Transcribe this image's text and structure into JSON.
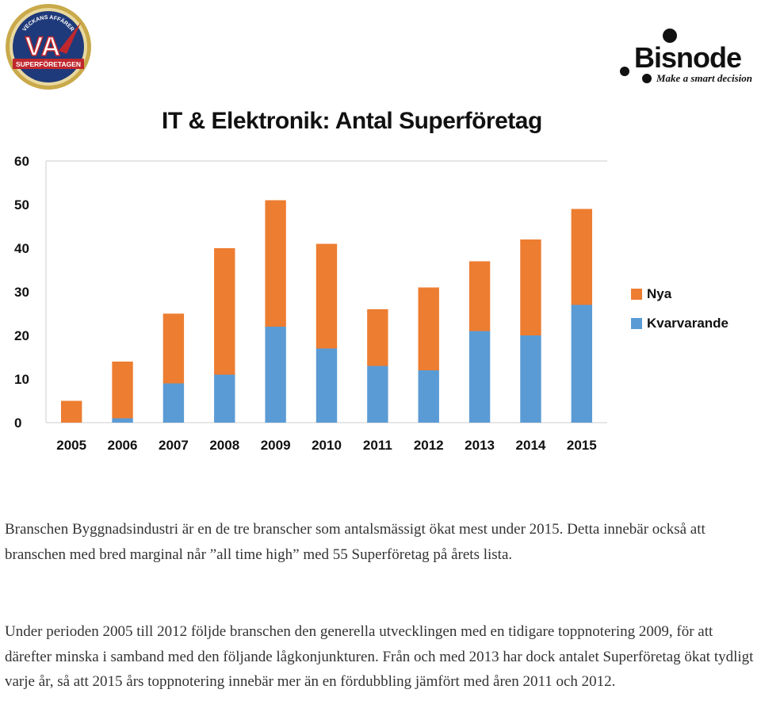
{
  "badge": {
    "top_text": "VECKANS AFFÄRER",
    "initials": "VA",
    "bottom_text": "SUPERFÖRETAGEN"
  },
  "brand": {
    "name": "Bisnode",
    "tagline": "Make a smart decision"
  },
  "chart_data": {
    "type": "bar",
    "stacked": true,
    "title": "IT & Elektronik: Antal Superföretag",
    "categories": [
      "2005",
      "2006",
      "2007",
      "2008",
      "2009",
      "2010",
      "2011",
      "2012",
      "2013",
      "2014",
      "2015"
    ],
    "series": [
      {
        "name": "Kvarvarande",
        "color": "#5b9bd5",
        "values": [
          0,
          1,
          9,
          11,
          22,
          17,
          13,
          12,
          21,
          20,
          27
        ]
      },
      {
        "name": "Nya",
        "color": "#ed7d31",
        "values": [
          5,
          13,
          16,
          29,
          29,
          24,
          13,
          19,
          16,
          22,
          22
        ]
      }
    ],
    "ylim": [
      0,
      60
    ],
    "yticks": [
      0,
      10,
      20,
      30,
      40,
      50,
      60
    ],
    "grid": false,
    "legend": "right"
  },
  "legend_items": [
    {
      "label": "Nya",
      "color": "#ed7d31"
    },
    {
      "label": "Kvarvarande",
      "color": "#5b9bd5"
    }
  ],
  "paragraphs": [
    "Branschen Byggnadsindustri är en de tre branscher som antalsmässigt ökat mest under 2015. Detta innebär också att branschen med bred marginal når ”all time high” med 55 Superföretag på årets lista.",
    "Under perioden 2005 till 2012 följde branschen den generella utvecklingen med en tidigare toppnotering 2009, för att därefter minska i samband med den följande lågkonjunkturen. Från och med 2013 har dock antalet Superföretag ökat tydligt varje år, så att 2015 års toppnotering innebär mer än en fördubbling jämfört med åren 2011 och 2012."
  ]
}
